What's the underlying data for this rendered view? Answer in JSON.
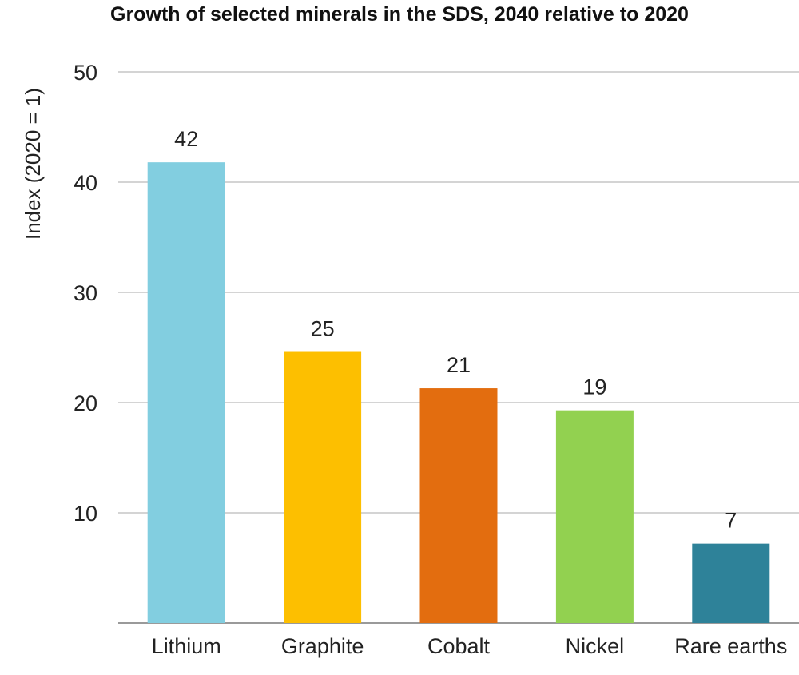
{
  "chart_data": {
    "type": "bar",
    "title": "Growth of selected minerals in the SDS, 2040 relative to 2020",
    "xlabel": "",
    "ylabel": "Index (2020 = 1)",
    "categories": [
      "Lithium",
      "Graphite",
      "Cobalt",
      "Nickel",
      "Rare earths"
    ],
    "values": [
      42,
      25,
      21,
      19,
      7
    ],
    "bar_values": [
      41.8,
      24.6,
      21.3,
      19.3,
      7.2
    ],
    "data_labels": [
      "42",
      "25",
      "21",
      "19",
      "7"
    ],
    "colors": [
      "#82cee0",
      "#fdbf00",
      "#e36d0f",
      "#92d150",
      "#2e8299"
    ],
    "ylim": [
      0,
      50
    ],
    "yticks": [
      10,
      20,
      30,
      40,
      50
    ],
    "ytick_labels": [
      "10",
      "20",
      "30",
      "40",
      "50"
    ],
    "grid": true,
    "legend": "none"
  }
}
